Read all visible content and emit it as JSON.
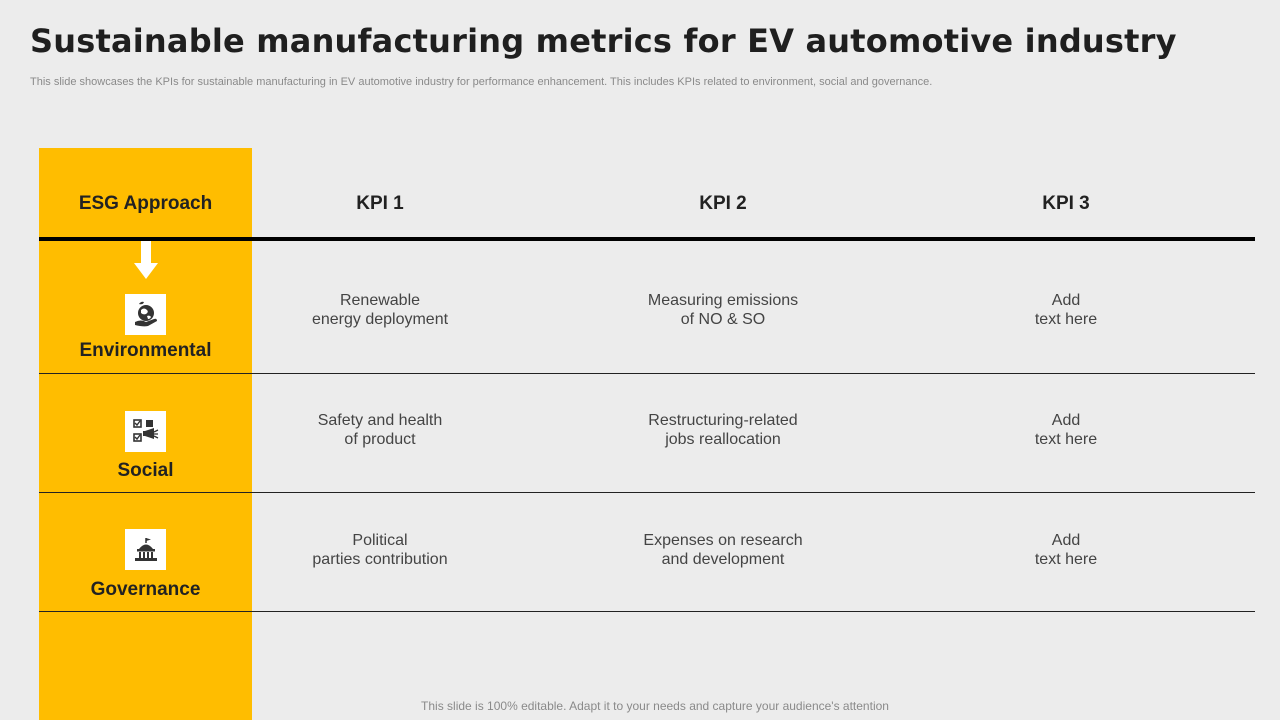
{
  "title": "Sustainable manufacturing metrics for EV automotive industry",
  "subtitle": "This slide showcases the KPIs for sustainable manufacturing in EV automotive industry for performance enhancement. This includes KPIs related to environment, social and governance.",
  "table": {
    "headers": [
      "ESG Approach",
      "KPI 1",
      "KPI 2",
      "KPI 3"
    ],
    "rows": [
      {
        "label": "Environmental",
        "icon": "earth-hand-icon",
        "kpis": [
          [
            "Renewable",
            "energy deployment"
          ],
          [
            "Measuring emissions",
            "of NO & SO"
          ],
          [
            "Add",
            "text here"
          ]
        ]
      },
      {
        "label": "Social",
        "icon": "checklist-megaphone-icon",
        "kpis": [
          [
            "Safety and health",
            "of product"
          ],
          [
            "Restructuring-related",
            "jobs reallocation"
          ],
          [
            "Add",
            "text here"
          ]
        ]
      },
      {
        "label": "Governance",
        "icon": "government-building-icon",
        "kpis": [
          [
            "Political",
            "parties contribution"
          ],
          [
            "Expenses on research",
            "and development"
          ],
          [
            "Add",
            "text here"
          ]
        ]
      }
    ]
  },
  "footer": "This slide is 100% editable. Adapt it to your needs and capture your audience's attention",
  "colors": {
    "accent": "#ffbd00",
    "background": "#ececec",
    "text": "#222222"
  }
}
